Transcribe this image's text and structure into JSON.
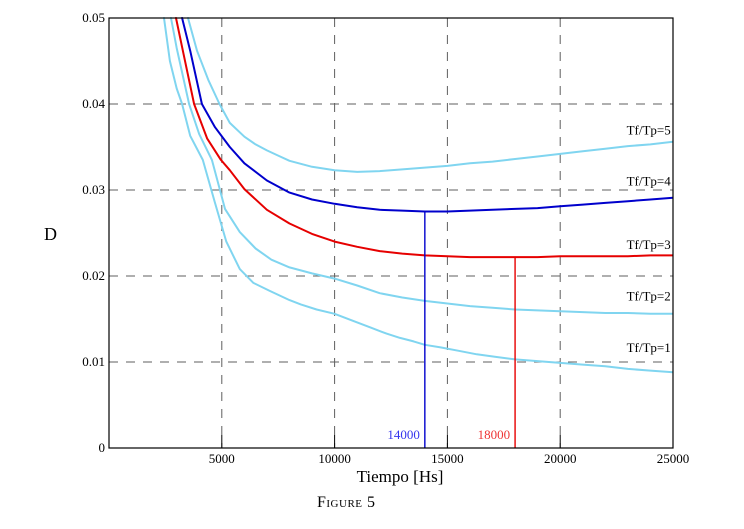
{
  "figure": {
    "caption": "Figure 5",
    "background": "#ffffff"
  },
  "chart_data": {
    "type": "line",
    "title": "",
    "xlabel": "Tiempo [Hs]",
    "ylabel": "D",
    "xlim": [
      0,
      25000
    ],
    "ylim": [
      0,
      0.05
    ],
    "axis_color": "#000000",
    "grid": {
      "style": "dashed",
      "color": "#5f5f5f",
      "x_values": [
        5000,
        10000,
        15000,
        20000
      ],
      "y_values": [
        0.01,
        0.02,
        0.03,
        0.04
      ]
    },
    "x_ticks": [
      {
        "value": 5000,
        "label": "5000"
      },
      {
        "value": 10000,
        "label": "10000"
      },
      {
        "value": 15000,
        "label": "15000"
      },
      {
        "value": 20000,
        "label": "20000"
      },
      {
        "value": 25000,
        "label": "25000"
      }
    ],
    "y_ticks": [
      {
        "value": 0,
        "label": "0"
      },
      {
        "value": 0.01,
        "label": "0.01"
      },
      {
        "value": 0.02,
        "label": "0.02"
      },
      {
        "value": 0.03,
        "label": "0.03"
      },
      {
        "value": 0.04,
        "label": "0.04"
      },
      {
        "value": 0.05,
        "label": "0.05"
      }
    ],
    "series": [
      {
        "name": "Tf/Tp=1",
        "color": "#80d5f0",
        "width": 2,
        "points": [
          [
            2440,
            0.05
          ],
          [
            2700,
            0.045
          ],
          [
            3000,
            0.0418
          ],
          [
            3240,
            0.04
          ],
          [
            3600,
            0.0363
          ],
          [
            4160,
            0.0335
          ],
          [
            4700,
            0.0285
          ],
          [
            5200,
            0.024
          ],
          [
            5800,
            0.0208
          ],
          [
            6400,
            0.0192
          ],
          [
            7100,
            0.0183
          ],
          [
            8000,
            0.0172
          ],
          [
            8500,
            0.0167
          ],
          [
            9200,
            0.0161
          ],
          [
            10000,
            0.0156
          ],
          [
            10800,
            0.0148
          ],
          [
            11600,
            0.014
          ],
          [
            12300,
            0.0133
          ],
          [
            12900,
            0.0128
          ],
          [
            13500,
            0.0124
          ],
          [
            14000,
            0.012
          ],
          [
            14700,
            0.0117
          ],
          [
            15500,
            0.0113
          ],
          [
            16300,
            0.0109
          ],
          [
            17100,
            0.0106
          ],
          [
            18000,
            0.0103
          ],
          [
            19000,
            0.0101
          ],
          [
            20000,
            0.0099
          ],
          [
            21000,
            0.0097
          ],
          [
            22000,
            0.0095
          ],
          [
            23000,
            0.0092
          ],
          [
            24000,
            0.009
          ],
          [
            25000,
            0.0088
          ]
        ]
      },
      {
        "name": "Tf/Tp=2",
        "color": "#80d5f0",
        "width": 2,
        "points": [
          [
            2750,
            0.05
          ],
          [
            3000,
            0.0465
          ],
          [
            3550,
            0.04
          ],
          [
            4000,
            0.0365
          ],
          [
            4560,
            0.0335
          ],
          [
            5140,
            0.0278
          ],
          [
            5800,
            0.0251
          ],
          [
            6500,
            0.0232
          ],
          [
            7200,
            0.0219
          ],
          [
            8000,
            0.021
          ],
          [
            9000,
            0.0203
          ],
          [
            10000,
            0.0197
          ],
          [
            11000,
            0.0189
          ],
          [
            12000,
            0.018
          ],
          [
            13000,
            0.0175
          ],
          [
            14000,
            0.0171
          ],
          [
            15000,
            0.0168
          ],
          [
            16000,
            0.0165
          ],
          [
            17000,
            0.0163
          ],
          [
            18000,
            0.0161
          ],
          [
            19000,
            0.016
          ],
          [
            20000,
            0.0159
          ],
          [
            21000,
            0.0158
          ],
          [
            22000,
            0.0157
          ],
          [
            23000,
            0.0157
          ],
          [
            24000,
            0.0156
          ],
          [
            25000,
            0.0156
          ]
        ]
      },
      {
        "name": "Tf/Tp=5",
        "color": "#80d5f0",
        "width": 2,
        "points": [
          [
            3500,
            0.05
          ],
          [
            3900,
            0.0462
          ],
          [
            4400,
            0.0428
          ],
          [
            4900,
            0.04
          ],
          [
            5354,
            0.0378
          ],
          [
            6000,
            0.0362
          ],
          [
            6500,
            0.0353
          ],
          [
            7000,
            0.0346
          ],
          [
            7500,
            0.034
          ],
          [
            8000,
            0.0334
          ],
          [
            9000,
            0.0327
          ],
          [
            10000,
            0.0323
          ],
          [
            11000,
            0.0321
          ],
          [
            12000,
            0.0322
          ],
          [
            13000,
            0.0324
          ],
          [
            14000,
            0.0326
          ],
          [
            15000,
            0.0328
          ],
          [
            16000,
            0.0331
          ],
          [
            17000,
            0.0333
          ],
          [
            18000,
            0.0336
          ],
          [
            19000,
            0.0339
          ],
          [
            20000,
            0.0342
          ],
          [
            21000,
            0.0345
          ],
          [
            22000,
            0.0348
          ],
          [
            23000,
            0.0351
          ],
          [
            24000,
            0.0353
          ],
          [
            25000,
            0.0356
          ]
        ]
      },
      {
        "name": "Tf/Tp=4",
        "color": "#0000cc",
        "width": 2,
        "points": [
          [
            3240,
            0.05
          ],
          [
            3600,
            0.0462
          ],
          [
            4120,
            0.04
          ],
          [
            4700,
            0.0373
          ],
          [
            5354,
            0.035
          ],
          [
            6000,
            0.0331
          ],
          [
            7000,
            0.0311
          ],
          [
            8000,
            0.0297
          ],
          [
            9000,
            0.0289
          ],
          [
            10000,
            0.0284
          ],
          [
            11000,
            0.028
          ],
          [
            12000,
            0.0277
          ],
          [
            13000,
            0.0276
          ],
          [
            14000,
            0.0275
          ],
          [
            15000,
            0.0275
          ],
          [
            16000,
            0.0276
          ],
          [
            17000,
            0.0277
          ],
          [
            18000,
            0.0278
          ],
          [
            19000,
            0.0279
          ],
          [
            20000,
            0.0281
          ],
          [
            21000,
            0.0283
          ],
          [
            22000,
            0.0285
          ],
          [
            23000,
            0.0287
          ],
          [
            24000,
            0.0289
          ],
          [
            25000,
            0.0291
          ]
        ]
      },
      {
        "name": "Tf/Tp=3",
        "color": "#e60000",
        "width": 2,
        "points": [
          [
            2970,
            0.05
          ],
          [
            3300,
            0.0459
          ],
          [
            3770,
            0.04
          ],
          [
            4350,
            0.036
          ],
          [
            4960,
            0.0335
          ],
          [
            5354,
            0.0323
          ],
          [
            6000,
            0.0301
          ],
          [
            7000,
            0.0277
          ],
          [
            8000,
            0.0261
          ],
          [
            9000,
            0.0249
          ],
          [
            10000,
            0.024
          ],
          [
            11000,
            0.0234
          ],
          [
            12000,
            0.0229
          ],
          [
            13000,
            0.0226
          ],
          [
            14000,
            0.0224
          ],
          [
            15000,
            0.0223
          ],
          [
            16000,
            0.0222
          ],
          [
            17000,
            0.0222
          ],
          [
            18000,
            0.0222
          ],
          [
            19000,
            0.0222
          ],
          [
            20000,
            0.0223
          ],
          [
            21000,
            0.0223
          ],
          [
            22000,
            0.0223
          ],
          [
            23000,
            0.0223
          ],
          [
            24000,
            0.0224
          ],
          [
            25000,
            0.0224
          ]
        ]
      }
    ],
    "curve_labels": [
      {
        "text": "Tf/Tp=5",
        "x": 24900,
        "y": 0.0369
      },
      {
        "text": "Tf/Tp=4",
        "x": 24900,
        "y": 0.031
      },
      {
        "text": "Tf/Tp=3",
        "x": 24900,
        "y": 0.0236
      },
      {
        "text": "Tf/Tp=2",
        "x": 24900,
        "y": 0.0176
      },
      {
        "text": "Tf/Tp=1",
        "x": 24900,
        "y": 0.0116
      }
    ],
    "markers": [
      {
        "x": 14000,
        "y_top": 0.0275,
        "line_color": "#0000cc",
        "label": "14000",
        "label_color": "#3535ee"
      },
      {
        "x": 18000,
        "y_top": 0.0222,
        "line_color": "#e60000",
        "label": "18000",
        "label_color": "#ee3535"
      }
    ]
  }
}
